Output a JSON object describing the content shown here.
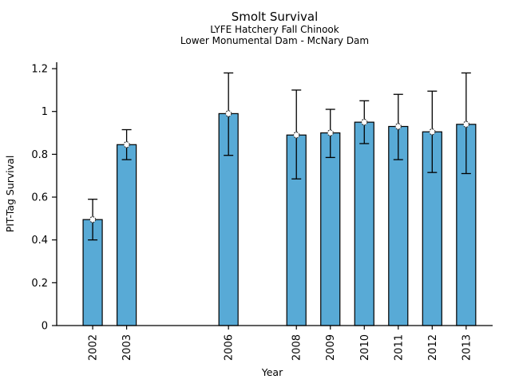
{
  "chart_data": {
    "type": "bar",
    "title": "Smolt Survival",
    "subtitle": [
      "LYFE Hatchery Fall Chinook",
      "Lower Monumental Dam - McNary Dam"
    ],
    "xlabel": "Year",
    "ylabel": "PIT-Tag Survival",
    "categories": [
      "2002",
      "2003",
      "2006",
      "2008",
      "2009",
      "2010",
      "2011",
      "2012",
      "2013"
    ],
    "x_years": [
      2002,
      2003,
      2006,
      2008,
      2009,
      2010,
      2011,
      2012,
      2013
    ],
    "values": [
      0.495,
      0.845,
      0.99,
      0.89,
      0.9,
      0.95,
      0.93,
      0.905,
      0.94
    ],
    "error_low": [
      0.4,
      0.775,
      0.795,
      0.685,
      0.785,
      0.85,
      0.775,
      0.715,
      0.71
    ],
    "error_high": [
      0.59,
      0.915,
      1.18,
      1.1,
      1.01,
      1.05,
      1.08,
      1.095,
      1.18
    ],
    "yticks": [
      0,
      0.2,
      0.4,
      0.6,
      0.8,
      1,
      1.2
    ],
    "ytick_labels": [
      "0",
      "0.2",
      "0.4",
      "0.6",
      "0.8",
      "1",
      "1.2"
    ],
    "ylim": [
      0,
      1.23
    ],
    "xlim": [
      2000.94,
      2013.78
    ],
    "grid": false,
    "legend": "none",
    "marker": "open-circle",
    "bar_color": "#58AAD6",
    "bar_edge_color": "#000000",
    "errorbar_color": "#000000",
    "marker_edge_color": "#3a3a3a",
    "marker_fill_color": "#ffffff"
  }
}
